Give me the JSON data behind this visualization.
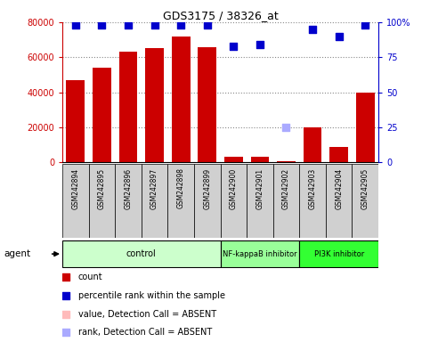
{
  "title": "GDS3175 / 38326_at",
  "samples": [
    "GSM242894",
    "GSM242895",
    "GSM242896",
    "GSM242897",
    "GSM242898",
    "GSM242899",
    "GSM242900",
    "GSM242901",
    "GSM242902",
    "GSM242903",
    "GSM242904",
    "GSM242905"
  ],
  "bar_values": [
    47000,
    54000,
    63000,
    65000,
    72000,
    66000,
    3000,
    3500,
    500,
    20000,
    9000,
    40000
  ],
  "bar_absent": [
    false,
    false,
    false,
    false,
    false,
    false,
    false,
    false,
    false,
    false,
    false,
    false
  ],
  "percentile_values": [
    98,
    98,
    98,
    98,
    98,
    98,
    83,
    84,
    null,
    95,
    90,
    98
  ],
  "percentile_absent": [
    false,
    false,
    false,
    false,
    false,
    false,
    false,
    false,
    true,
    false,
    false,
    false
  ],
  "absent_rank_value": 25,
  "absent_rank_index": 8,
  "ylim_left": [
    0,
    80000
  ],
  "ylim_right": [
    0,
    100
  ],
  "yticks_left": [
    0,
    20000,
    40000,
    60000,
    80000
  ],
  "yticks_right": [
    0,
    25,
    50,
    75,
    100
  ],
  "ytick_labels_left": [
    "0",
    "20000",
    "40000",
    "60000",
    "80000"
  ],
  "ytick_labels_right": [
    "0",
    "25",
    "50",
    "75",
    "100%"
  ],
  "groups": [
    {
      "label": "control",
      "start": 0,
      "end": 5,
      "color": "#ccffcc"
    },
    {
      "label": "NF-kappaB inhibitor",
      "start": 6,
      "end": 8,
      "color": "#99ff99"
    },
    {
      "label": "PI3K inhibitor",
      "start": 9,
      "end": 11,
      "color": "#33ff33"
    }
  ],
  "bar_color": "#cc0000",
  "bar_absent_color": "#ffbbbb",
  "dot_color": "#0000cc",
  "dot_absent_color": "#aaaaff",
  "dot_size": 30,
  "dot_absent_size": 30,
  "left_axis_color": "#cc0000",
  "right_axis_color": "#0000cc",
  "agent_label": "agent",
  "background_color": "#ffffff",
  "grid_color": "#888888",
  "label_area_color": "#d0d0d0",
  "legend_items": [
    {
      "color": "#cc0000",
      "label": "count"
    },
    {
      "color": "#0000cc",
      "label": "percentile rank within the sample"
    },
    {
      "color": "#ffbbbb",
      "label": "value, Detection Call = ABSENT"
    },
    {
      "color": "#aaaaff",
      "label": "rank, Detection Call = ABSENT"
    }
  ]
}
